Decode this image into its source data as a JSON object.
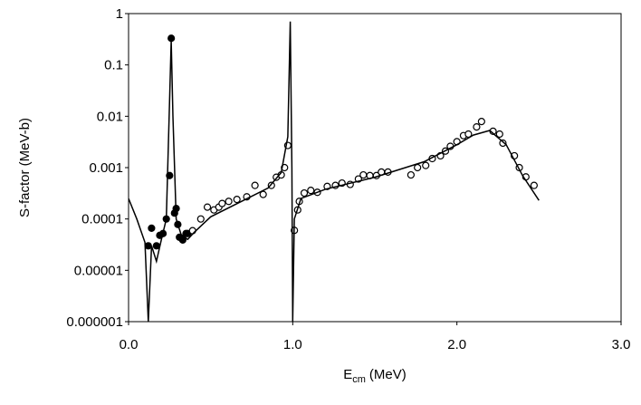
{
  "chart_data": {
    "type": "scatter",
    "xlabel": "E",
    "xlabel_sub": "cm",
    "xlabel_unit": "(MeV)",
    "ylabel": "S-factor (MeV-b)",
    "ylog": true,
    "xlim": [
      0,
      3
    ],
    "ylim": [
      1e-06,
      1
    ],
    "xticks": [
      {
        "value": 0,
        "label": "0.0"
      },
      {
        "value": 1,
        "label": "1.0"
      },
      {
        "value": 2,
        "label": "2.0"
      },
      {
        "value": 3,
        "label": "3.0"
      }
    ],
    "yticks": [
      1e-06,
      1e-05,
      0.0001,
      0.001,
      0.01,
      0.1,
      1
    ],
    "series": [
      {
        "marker": "filled",
        "color": "#000000",
        "x": [
          0.12,
          0.14,
          0.17,
          0.19,
          0.21,
          0.23,
          0.25,
          0.26,
          0.28,
          0.29,
          0.3,
          0.31,
          0.33,
          0.35,
          0.36
        ],
        "values": [
          3e-05,
          6.6e-05,
          3e-05,
          4.8e-05,
          5.2e-05,
          0.0001,
          0.0007,
          0.33,
          0.00013,
          0.00016,
          7.8e-05,
          4.4e-05,
          3.9e-05,
          5.2e-05,
          5.2e-05
        ]
      },
      {
        "marker": "open",
        "color": "#000000",
        "x": [
          0.39,
          0.44,
          0.48,
          0.52,
          0.55,
          0.57,
          0.61,
          0.66,
          0.72,
          0.77,
          0.82,
          0.87,
          0.9,
          0.93,
          0.95,
          0.97,
          1.01,
          1.03,
          1.04,
          1.07,
          1.11,
          1.15,
          1.21,
          1.26,
          1.3,
          1.35,
          1.4,
          1.43,
          1.47,
          1.51,
          1.54,
          1.58,
          1.72,
          1.76,
          1.81,
          1.85,
          1.9,
          1.93,
          1.96,
          2.0,
          2.04,
          2.07,
          2.12,
          2.15,
          2.22,
          2.26,
          2.28,
          2.35,
          2.38,
          2.42,
          2.47
        ],
        "values": [
          5.9e-05,
          0.0001,
          0.00017,
          0.00015,
          0.00017,
          0.0002,
          0.00022,
          0.00024,
          0.00027,
          0.00045,
          0.0003,
          0.00045,
          0.00065,
          0.00072,
          0.001,
          0.0027,
          6e-05,
          0.00015,
          0.00022,
          0.00032,
          0.00036,
          0.00033,
          0.00043,
          0.00045,
          0.0005,
          0.00047,
          0.0006,
          0.00072,
          0.0007,
          0.0007,
          0.00082,
          0.00082,
          0.00072,
          0.001,
          0.0011,
          0.0015,
          0.0017,
          0.0021,
          0.0026,
          0.0032,
          0.0042,
          0.0045,
          0.0062,
          0.0079,
          0.0051,
          0.0045,
          0.003,
          0.0017,
          0.001,
          0.00066,
          0.00045
        ]
      },
      {
        "marker": "line",
        "color": "#000000",
        "x": [
          0,
          0.05,
          0.1,
          0.12,
          0.14,
          0.17,
          0.2,
          0.23,
          0.25,
          0.26,
          0.27,
          0.29,
          0.32,
          0.36,
          0.4,
          0.5,
          0.7,
          0.85,
          0.93,
          0.97,
          0.985,
          0.995,
          1.0,
          1.01,
          1.05,
          1.2,
          1.5,
          1.8,
          2.0,
          2.1,
          2.2,
          2.3,
          2.4,
          2.5
        ],
        "values": [
          0.00025,
          0.0001,
          3.5e-05,
          1e-06,
          3e-05,
          1.5e-05,
          4e-05,
          0.0001,
          0.02,
          0.3,
          0.01,
          0.0001,
          5e-05,
          4e-05,
          5.5e-05,
          0.00011,
          0.00023,
          0.0004,
          0.0008,
          0.004,
          0.7,
          0.001,
          1e-06,
          0.0001,
          0.00025,
          0.00038,
          0.00065,
          0.0013,
          0.0028,
          0.0043,
          0.0053,
          0.0028,
          0.0007,
          0.00023
        ]
      }
    ]
  }
}
